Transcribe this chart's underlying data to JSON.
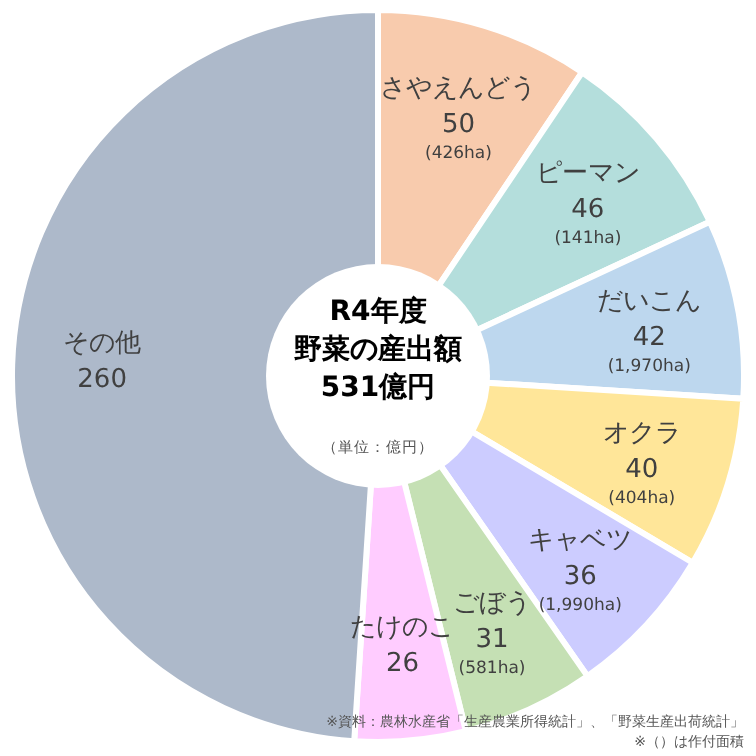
{
  "chart_data": {
    "type": "donut",
    "title": "R4年度野菜の産出額",
    "subtitle": "531億円",
    "categories": [
      "さやえんどう",
      "ピーマン",
      "だいこん",
      "オクラ",
      "キャベツ",
      "ごぼう",
      "たけのこ",
      "その他"
    ],
    "values": [
      50,
      46,
      42,
      40,
      36,
      31,
      26,
      260
    ],
    "colors": [
      "#f8cbad",
      "#b4dedc",
      "#bdd7ee",
      "#ffe699",
      "#ccccff",
      "#c5e0b4",
      "#ffccff",
      "#adb9ca"
    ],
    "data_labels": true,
    "legend": false,
    "annotations": [
      "（単位：億円）",
      {
        "text": "(426ha)",
        "x": "さやえんどう"
      },
      {
        "text": "(141ha)",
        "x": "ピーマン"
      },
      {
        "text": "(1,970ha)",
        "x": "だいこん"
      },
      {
        "text": "(404ha)",
        "x": "オクラ"
      },
      {
        "text": "(1,990ha)",
        "x": "キャベツ"
      },
      {
        "text": "(581ha)",
        "x": "ごぼう"
      },
      "※資料：農林水産省「生産農業所得統計」、「野菜生産出荷統計」",
      "※（）は作付面積"
    ]
  }
}
